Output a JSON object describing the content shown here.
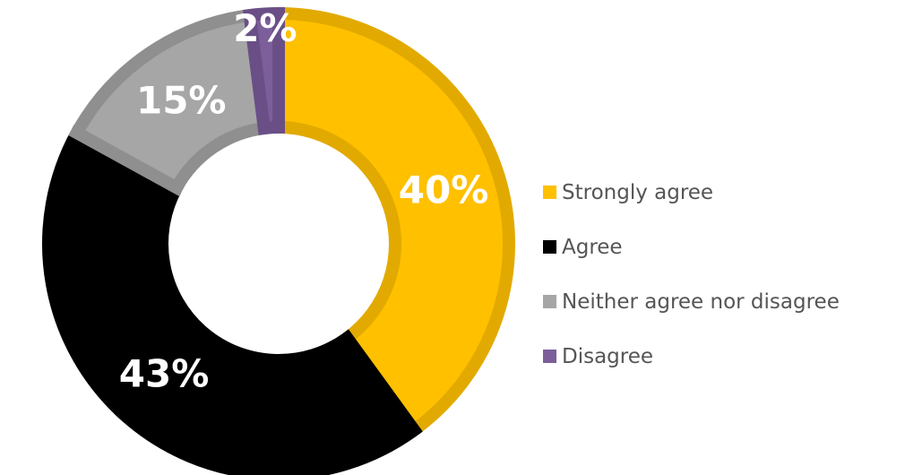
{
  "chart_data": {
    "type": "pie",
    "donut": true,
    "title": "",
    "slices": [
      {
        "name": "Strongly agree",
        "value": 40,
        "label": "40%",
        "color": "#FFC000",
        "edge": "#E2AA00"
      },
      {
        "name": "Agree",
        "value": 43,
        "label": "43%",
        "color": "#000000",
        "edge": "#000000"
      },
      {
        "name": "Neither agree nor disagree",
        "value": 15,
        "label": "15%",
        "color": "#A6A6A6",
        "edge": "#8F8F8F"
      },
      {
        "name": "Disagree",
        "value": 2,
        "label": "2%",
        "color": "#7B5E9A",
        "edge": "#6A4F87"
      }
    ],
    "start_angle": "12 o'clock",
    "direction": "clockwise",
    "legend_position": "right"
  }
}
